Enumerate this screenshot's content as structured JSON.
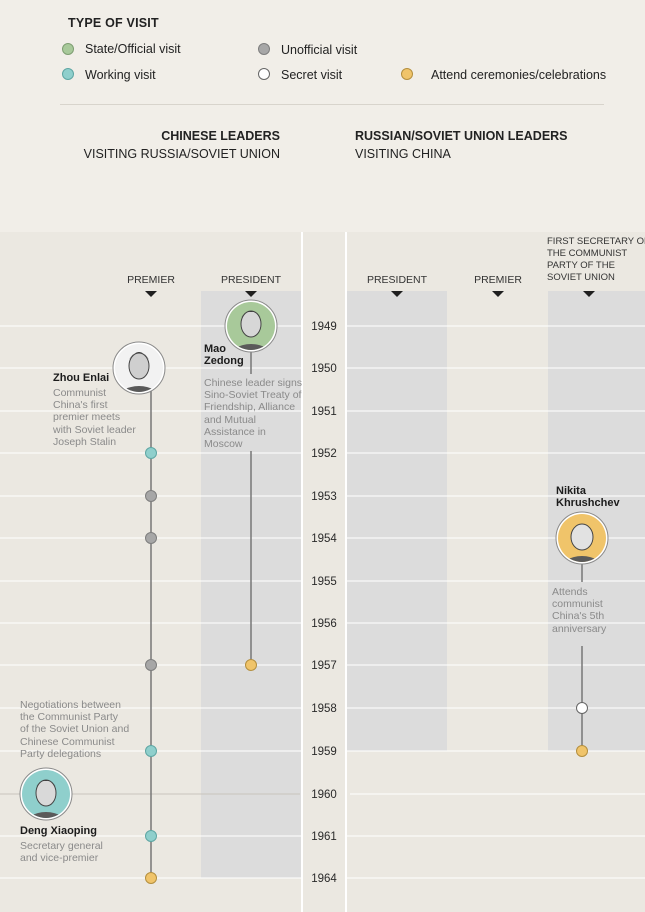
{
  "legend": {
    "title": "TYPE OF VISIT",
    "items": [
      {
        "label": "State/Official visit",
        "color": "#a8c99a",
        "border": "#7e9e72"
      },
      {
        "label": "Unofficial visit",
        "color": "#a7a7a7",
        "border": "#7e7e7e"
      },
      {
        "label": "Working visit",
        "color": "#8fcfcc",
        "border": "#5ea6a3"
      },
      {
        "label": "Secret visit",
        "color": "#ffffff",
        "border": "#666666"
      },
      {
        "label": "Attend ceremonies/celebrations",
        "color": "#f0c46a",
        "border": "#b48f3e"
      }
    ]
  },
  "groups": {
    "chinese": {
      "title": "CHINESE LEADERS",
      "subtitle": "VISITING RUSSIA/SOVIET UNION"
    },
    "russian": {
      "title": "RUSSIAN/SOVIET UNION LEADERS",
      "subtitle": "VISITING CHINA"
    }
  },
  "columns": {
    "cn_premier": "PREMIER",
    "cn_president": "PRESIDENT",
    "ru_president": "PRESIDENT",
    "ru_premier": "PREMIER",
    "ru_first_secretary": [
      "FIRST SECRETARY OF",
      "THE COMMUNIST",
      "PARTY OF THE",
      "SOVIET UNION"
    ]
  },
  "years": [
    "1949",
    "1950",
    "1951",
    "1952",
    "1953",
    "1954",
    "1955",
    "1956",
    "1957",
    "1958",
    "1959",
    "1960",
    "1961",
    "1964"
  ],
  "leaders": {
    "zhou": {
      "name": [
        "Zhou Enlai"
      ],
      "note": [
        "Communist",
        "China's first",
        "premier meets",
        "with Soviet leader",
        "Joseph Stalin"
      ]
    },
    "mao": {
      "name": [
        "Mao",
        "Zedong"
      ],
      "note": [
        "Chinese leader signs",
        "Sino-Soviet Treaty of",
        "Friendship, Alliance",
        "and Mutual",
        "Assistance in",
        "Moscow"
      ]
    },
    "khrushchev": {
      "name": [
        "Nikita",
        "Khrushchev"
      ],
      "note": [
        "Attends",
        "communist",
        "China's 5th",
        "anniversary"
      ]
    },
    "deng": {
      "name": [
        "Deng Xiaoping"
      ],
      "note": [
        "Secretary general",
        "and vice-premier"
      ]
    }
  },
  "negotiations_note": [
    "Negotiations between",
    "the Communist Party",
    "of the Soviet Union and",
    "Chinese Communist",
    "Party delegations"
  ],
  "visits": [
    {
      "column": "cn_premier",
      "year": "1952",
      "type": "Working visit"
    },
    {
      "column": "cn_premier",
      "year": "1953",
      "type": "Unofficial visit"
    },
    {
      "column": "cn_premier",
      "year": "1954",
      "type": "Unofficial visit"
    },
    {
      "column": "cn_premier",
      "year": "1957",
      "type": "Unofficial visit"
    },
    {
      "column": "cn_premier",
      "year": "1959",
      "type": "Working visit"
    },
    {
      "column": "cn_premier",
      "year": "1961",
      "type": "Working visit"
    },
    {
      "column": "cn_premier",
      "year": "1964",
      "type": "Attend ceremonies/celebrations"
    },
    {
      "column": "cn_president",
      "year": "1957",
      "type": "Attend ceremonies/celebrations"
    },
    {
      "column": "ru_first_secretary",
      "year": "1958",
      "type": "Secret visit"
    },
    {
      "column": "ru_first_secretary",
      "year": "1959",
      "type": "Attend ceremonies/celebrations"
    }
  ]
}
